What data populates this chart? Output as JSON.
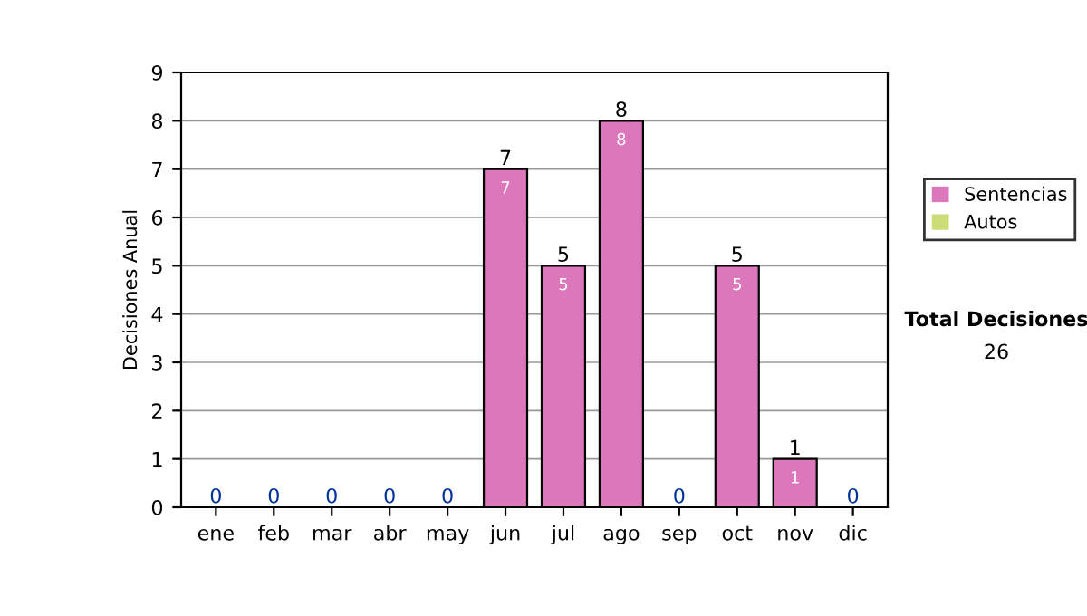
{
  "chart_data": {
    "type": "bar",
    "ylabel": "Decisiones Anual",
    "categories": [
      "ene",
      "feb",
      "mar",
      "abr",
      "may",
      "jun",
      "jul",
      "ago",
      "sep",
      "oct",
      "nov",
      "dic"
    ],
    "series": [
      {
        "name": "Sentencias",
        "color": "#dd77bb",
        "values": [
          0,
          0,
          0,
          0,
          0,
          7,
          5,
          8,
          0,
          5,
          1,
          0
        ],
        "value_labels": [
          null,
          null,
          null,
          null,
          null,
          "7",
          "5",
          "8",
          null,
          "5",
          "1",
          null
        ]
      },
      {
        "name": "Autos",
        "color": "#ccdd77",
        "values": [
          0,
          0,
          0,
          0,
          0,
          0,
          0,
          0,
          0,
          0,
          0,
          0
        ]
      }
    ],
    "stacked": true,
    "totals": [
      "0",
      "0",
      "0",
      "0",
      "0",
      "7",
      "5",
      "8",
      "0",
      "5",
      "1",
      "0"
    ],
    "ylim": [
      0,
      9
    ],
    "yticks": [
      0,
      1,
      2,
      3,
      4,
      5,
      6,
      7,
      8,
      9
    ],
    "grid": "y",
    "legend": "right",
    "annotations": [
      "Total Decisiones",
      "26"
    ]
  }
}
